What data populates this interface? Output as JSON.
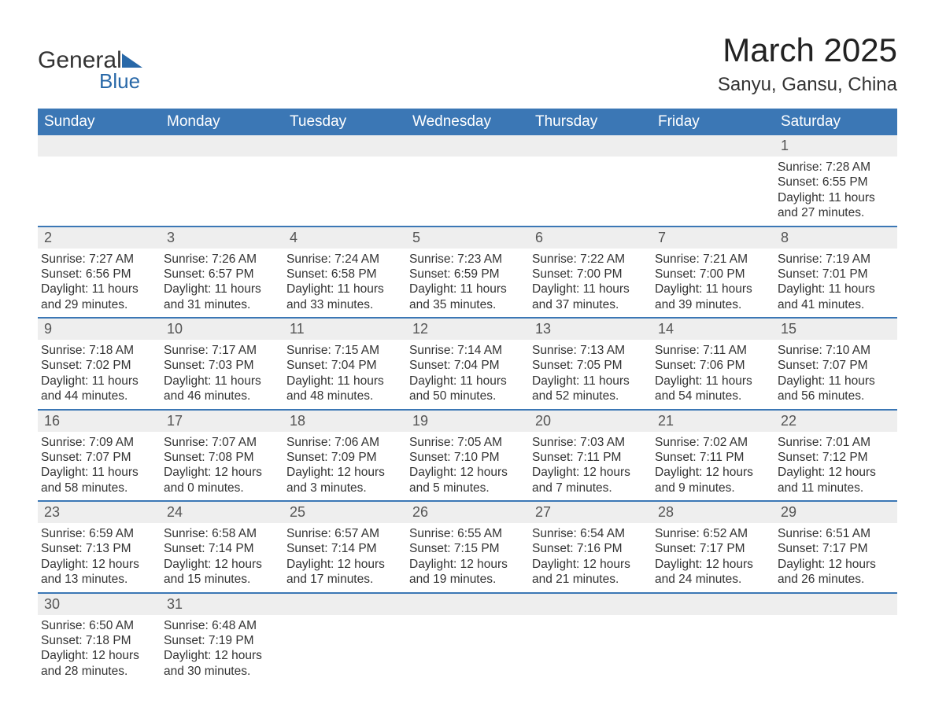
{
  "logo": {
    "text1": "General",
    "text2": "Blue"
  },
  "title": "March 2025",
  "location": "Sanyu, Gansu, China",
  "colors": {
    "header_bg": "#3b77b5",
    "header_text": "#ffffff",
    "row_border": "#3b77b5",
    "daynum_bg": "#eeeeee",
    "text": "#333333",
    "logo_accent": "#2868a8"
  },
  "weekdays": [
    "Sunday",
    "Monday",
    "Tuesday",
    "Wednesday",
    "Thursday",
    "Friday",
    "Saturday"
  ],
  "labels": {
    "sunrise": "Sunrise",
    "sunset": "Sunset",
    "daylight": "Daylight"
  },
  "weeks": [
    [
      null,
      null,
      null,
      null,
      null,
      null,
      {
        "d": "1",
        "sr": "7:28 AM",
        "ss": "6:55 PM",
        "dl": "11 hours and 27 minutes."
      }
    ],
    [
      {
        "d": "2",
        "sr": "7:27 AM",
        "ss": "6:56 PM",
        "dl": "11 hours and 29 minutes."
      },
      {
        "d": "3",
        "sr": "7:26 AM",
        "ss": "6:57 PM",
        "dl": "11 hours and 31 minutes."
      },
      {
        "d": "4",
        "sr": "7:24 AM",
        "ss": "6:58 PM",
        "dl": "11 hours and 33 minutes."
      },
      {
        "d": "5",
        "sr": "7:23 AM",
        "ss": "6:59 PM",
        "dl": "11 hours and 35 minutes."
      },
      {
        "d": "6",
        "sr": "7:22 AM",
        "ss": "7:00 PM",
        "dl": "11 hours and 37 minutes."
      },
      {
        "d": "7",
        "sr": "7:21 AM",
        "ss": "7:00 PM",
        "dl": "11 hours and 39 minutes."
      },
      {
        "d": "8",
        "sr": "7:19 AM",
        "ss": "7:01 PM",
        "dl": "11 hours and 41 minutes."
      }
    ],
    [
      {
        "d": "9",
        "sr": "7:18 AM",
        "ss": "7:02 PM",
        "dl": "11 hours and 44 minutes."
      },
      {
        "d": "10",
        "sr": "7:17 AM",
        "ss": "7:03 PM",
        "dl": "11 hours and 46 minutes."
      },
      {
        "d": "11",
        "sr": "7:15 AM",
        "ss": "7:04 PM",
        "dl": "11 hours and 48 minutes."
      },
      {
        "d": "12",
        "sr": "7:14 AM",
        "ss": "7:04 PM",
        "dl": "11 hours and 50 minutes."
      },
      {
        "d": "13",
        "sr": "7:13 AM",
        "ss": "7:05 PM",
        "dl": "11 hours and 52 minutes."
      },
      {
        "d": "14",
        "sr": "7:11 AM",
        "ss": "7:06 PM",
        "dl": "11 hours and 54 minutes."
      },
      {
        "d": "15",
        "sr": "7:10 AM",
        "ss": "7:07 PM",
        "dl": "11 hours and 56 minutes."
      }
    ],
    [
      {
        "d": "16",
        "sr": "7:09 AM",
        "ss": "7:07 PM",
        "dl": "11 hours and 58 minutes."
      },
      {
        "d": "17",
        "sr": "7:07 AM",
        "ss": "7:08 PM",
        "dl": "12 hours and 0 minutes."
      },
      {
        "d": "18",
        "sr": "7:06 AM",
        "ss": "7:09 PM",
        "dl": "12 hours and 3 minutes."
      },
      {
        "d": "19",
        "sr": "7:05 AM",
        "ss": "7:10 PM",
        "dl": "12 hours and 5 minutes."
      },
      {
        "d": "20",
        "sr": "7:03 AM",
        "ss": "7:11 PM",
        "dl": "12 hours and 7 minutes."
      },
      {
        "d": "21",
        "sr": "7:02 AM",
        "ss": "7:11 PM",
        "dl": "12 hours and 9 minutes."
      },
      {
        "d": "22",
        "sr": "7:01 AM",
        "ss": "7:12 PM",
        "dl": "12 hours and 11 minutes."
      }
    ],
    [
      {
        "d": "23",
        "sr": "6:59 AM",
        "ss": "7:13 PM",
        "dl": "12 hours and 13 minutes."
      },
      {
        "d": "24",
        "sr": "6:58 AM",
        "ss": "7:14 PM",
        "dl": "12 hours and 15 minutes."
      },
      {
        "d": "25",
        "sr": "6:57 AM",
        "ss": "7:14 PM",
        "dl": "12 hours and 17 minutes."
      },
      {
        "d": "26",
        "sr": "6:55 AM",
        "ss": "7:15 PM",
        "dl": "12 hours and 19 minutes."
      },
      {
        "d": "27",
        "sr": "6:54 AM",
        "ss": "7:16 PM",
        "dl": "12 hours and 21 minutes."
      },
      {
        "d": "28",
        "sr": "6:52 AM",
        "ss": "7:17 PM",
        "dl": "12 hours and 24 minutes."
      },
      {
        "d": "29",
        "sr": "6:51 AM",
        "ss": "7:17 PM",
        "dl": "12 hours and 26 minutes."
      }
    ],
    [
      {
        "d": "30",
        "sr": "6:50 AM",
        "ss": "7:18 PM",
        "dl": "12 hours and 28 minutes."
      },
      {
        "d": "31",
        "sr": "6:48 AM",
        "ss": "7:19 PM",
        "dl": "12 hours and 30 minutes."
      },
      null,
      null,
      null,
      null,
      null
    ]
  ]
}
